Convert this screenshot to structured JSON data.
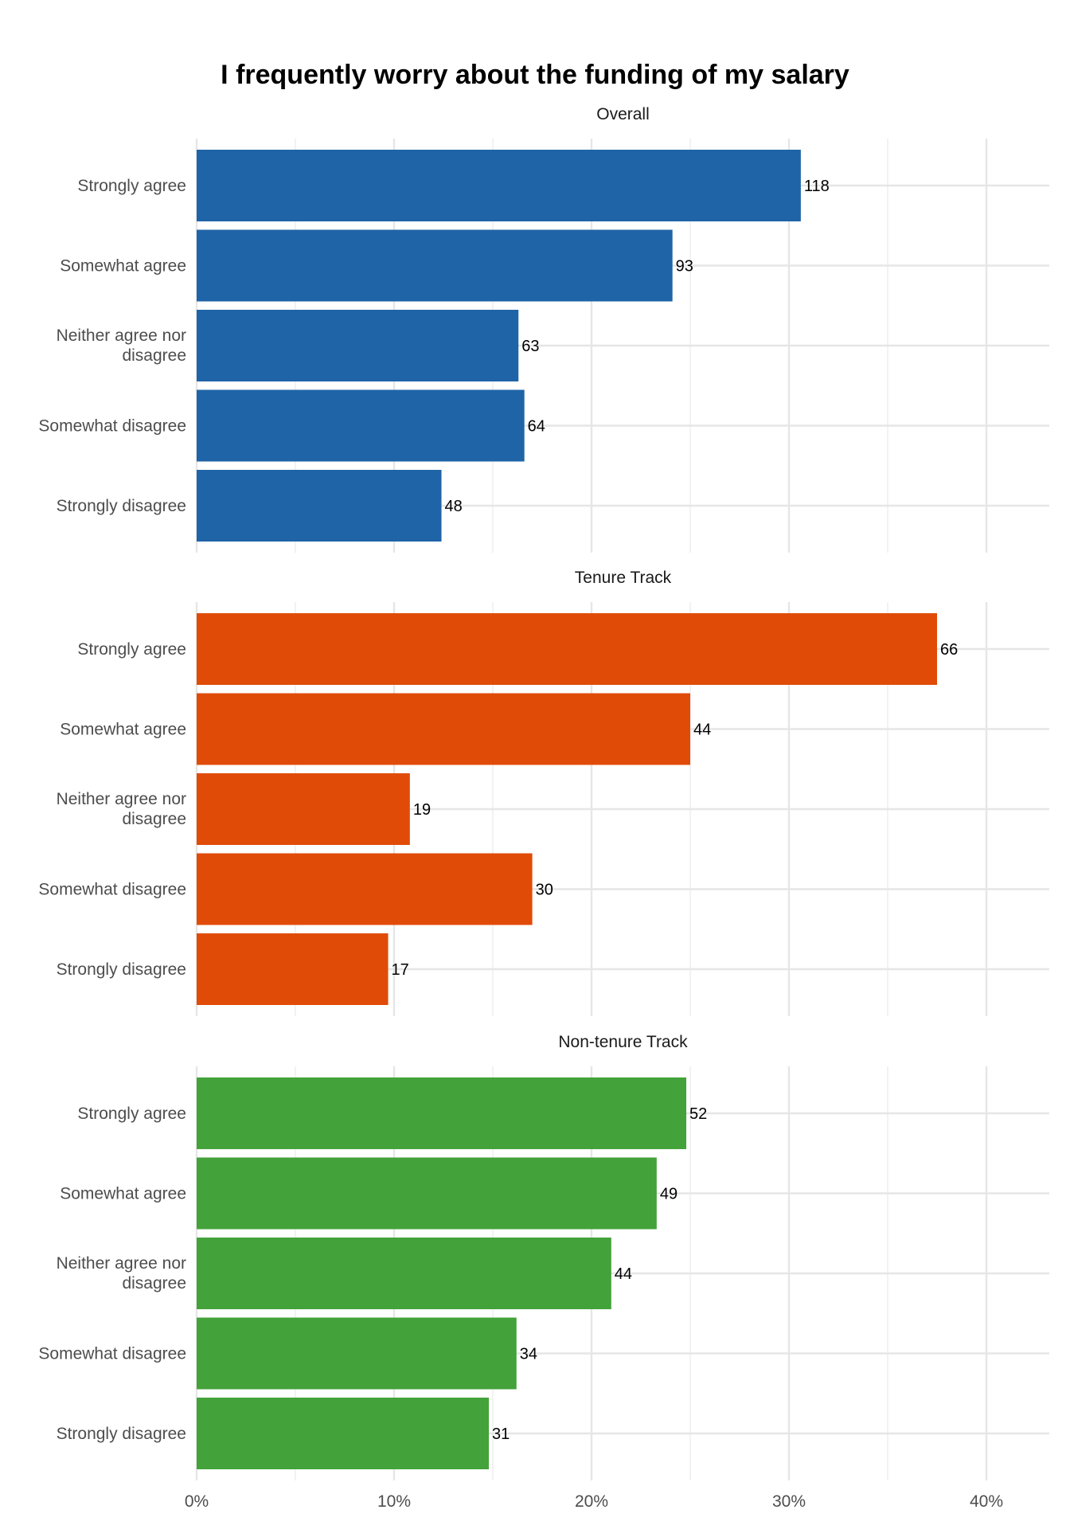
{
  "chart_data": {
    "type": "bar",
    "title": "I frequently worry about the funding of my salary",
    "xlabel": "",
    "ylabel": "",
    "x_unit": "percent",
    "xlim": [
      0,
      43
    ],
    "x_ticks": [
      0,
      10,
      20,
      30,
      40
    ],
    "x_tick_labels": [
      "0%",
      "10%",
      "20%",
      "30%",
      "40%"
    ],
    "grid": true,
    "categories": [
      "Strongly agree",
      "Somewhat agree",
      "Neither agree nor disagree",
      "Somewhat disagree",
      "Strongly disagree"
    ],
    "category_label_lines": [
      [
        "Strongly agree"
      ],
      [
        "Somewhat agree"
      ],
      [
        "Neither agree nor",
        "disagree"
      ],
      [
        "Somewhat disagree"
      ],
      [
        "Strongly disagree"
      ]
    ],
    "facets": [
      {
        "name": "Overall",
        "color": "#1f64a7",
        "percent": [
          30.6,
          24.1,
          16.3,
          16.6,
          12.4
        ],
        "counts": [
          118,
          93,
          63,
          64,
          48
        ]
      },
      {
        "name": "Tenure Track",
        "color": "#e04c08",
        "percent": [
          37.5,
          25.0,
          10.8,
          17.0,
          9.7
        ],
        "counts": [
          66,
          44,
          19,
          30,
          17
        ]
      },
      {
        "name": "Non-tenure Track",
        "color": "#43a23a",
        "percent": [
          24.8,
          23.3,
          21.0,
          16.2,
          14.8
        ],
        "counts": [
          52,
          49,
          44,
          34,
          31
        ]
      }
    ]
  }
}
